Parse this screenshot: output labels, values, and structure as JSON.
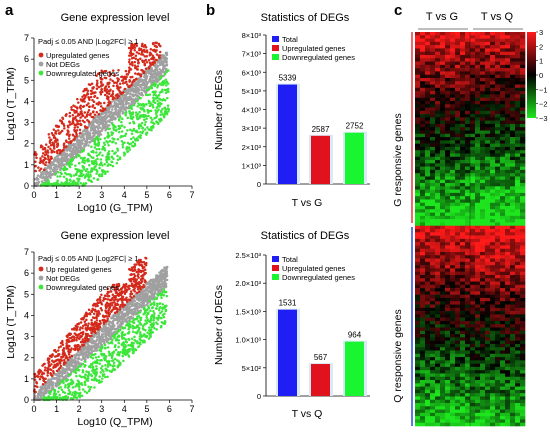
{
  "panel_labels": {
    "a": "a",
    "b": "b",
    "c": "c"
  },
  "colors": {
    "upregulated_scatter": "#d42a1c",
    "not_degs": "#a0a0a0",
    "downregulated_scatter": "#3ce63a",
    "total_bar": "#1f1ff5",
    "upregulated_bar": "#e0121e",
    "downregulated_bar": "#19f531",
    "heatmap_high": "#ff1a1a",
    "heatmap_mid": "#000000",
    "heatmap_low": "#1ee61e",
    "g_bracket": "#e83a3a",
    "q_bracket": "#2b4fd8"
  },
  "chart_data": [
    {
      "type": "scatter",
      "title": "Gene expression level",
      "xlabel": "Log10 (G_TPM)",
      "ylabel": "Log10 (T_TPM)",
      "xlim": [
        0,
        7
      ],
      "ylim": [
        0,
        7
      ],
      "ticks": [
        "0",
        "1",
        "2",
        "3",
        "4",
        "5",
        "6",
        "7"
      ],
      "criterion": "Padj ≤ 0.05 AND |Log2FC| ≥ 1",
      "legend": [
        {
          "label": "Upregulated genes",
          "color_key": "upregulated_scatter"
        },
        {
          "label": "Not DEGs",
          "color_key": "not_degs"
        },
        {
          "label": "Downregulated genes",
          "color_key": "downregulated_scatter"
        }
      ],
      "legend_position": "top-left",
      "series": [
        {
          "name": "Upregulated genes",
          "x_range": [
            0,
            5.6
          ],
          "offset_range": [
            0.45,
            2.6
          ]
        },
        {
          "name": "Not DEGs",
          "x_range": [
            0,
            5.9
          ],
          "offset_range": [
            -0.55,
            0.55
          ]
        },
        {
          "name": "Downregulated genes",
          "x_range": [
            0.3,
            6.0
          ],
          "offset_range": [
            -2.6,
            -0.45
          ]
        }
      ]
    },
    {
      "type": "bar",
      "title": "Statistics of DEGs",
      "xlabel": "T vs G",
      "ylabel": "Number of DEGs",
      "ylim": [
        0,
        8000
      ],
      "ytick_labels": [
        "0",
        "1×10³",
        "2×10³",
        "3×10³",
        "4×10³",
        "5×10³",
        "6×10³",
        "7×10³",
        "8×10³"
      ],
      "legend": [
        "Total",
        "Upregulated genes",
        "Downregulated genes"
      ],
      "legend_position": "top-right",
      "categories": [
        "Total",
        "Upregulated genes",
        "Downregulated genes"
      ],
      "values": [
        5339,
        2587,
        2752
      ],
      "value_labels": [
        "5339",
        "2587",
        "2752"
      ]
    },
    {
      "type": "scatter",
      "title": "Gene expression level",
      "xlabel": "Log10 (Q_TPM)",
      "ylabel": "Log10 (T_TPM)",
      "xlim": [
        0,
        7
      ],
      "ylim": [
        0,
        7
      ],
      "ticks": [
        "0",
        "1",
        "2",
        "3",
        "4",
        "5",
        "6",
        "7"
      ],
      "criterion": "Padj ≤ 0.05 AND |Log2FC| ≥ 1",
      "legend": [
        {
          "label": "Up regulated genes",
          "color_key": "upregulated_scatter"
        },
        {
          "label": "Not DEGs",
          "color_key": "not_degs"
        },
        {
          "label": "Downregulated genes",
          "color_key": "downregulated_scatter"
        }
      ],
      "legend_position": "top-left",
      "series": [
        {
          "name": "Up regulated genes",
          "x_range": [
            0,
            5.0
          ],
          "offset_range": [
            0.45,
            2.0
          ]
        },
        {
          "name": "Not DEGs",
          "x_range": [
            0,
            5.9
          ],
          "offset_range": [
            -0.5,
            0.5
          ]
        },
        {
          "name": "Downregulated genes",
          "x_range": [
            0.4,
            5.9
          ],
          "offset_range": [
            -2.2,
            -0.45
          ]
        }
      ]
    },
    {
      "type": "bar",
      "title": "Statistics of DEGs",
      "xlabel": "T vs Q",
      "ylabel": "Number of DEGs",
      "ylim": [
        0,
        2500
      ],
      "ytick_labels": [
        "0",
        "5×10²",
        "1.0×10³",
        "1.5×10³",
        "2.0×10³",
        "2.5×10³"
      ],
      "legend": [
        "Total",
        "Upregulated genes",
        "Downregulated genes"
      ],
      "legend_position": "top-right",
      "categories": [
        "Total",
        "Upregulated genes",
        "Downregulated genes"
      ],
      "values": [
        1531,
        567,
        964
      ],
      "value_labels": [
        "1531",
        "567",
        "964"
      ]
    },
    {
      "type": "heatmap",
      "columns": [
        "T vs G",
        "T vs Q"
      ],
      "row_groups": [
        {
          "label": "G responsive genes",
          "color_key": "g_bracket",
          "fraction": 0.49
        },
        {
          "label": "Q responsive genes",
          "color_key": "q_bracket",
          "fraction": 0.51
        }
      ],
      "colorbar": {
        "min": -3,
        "max": 3,
        "tick_labels": [
          "3",
          "2",
          "1",
          "0",
          "−1",
          "−2",
          "−3"
        ]
      },
      "color_stops": [
        "heatmap_high",
        "heatmap_mid",
        "heatmap_low"
      ]
    }
  ]
}
